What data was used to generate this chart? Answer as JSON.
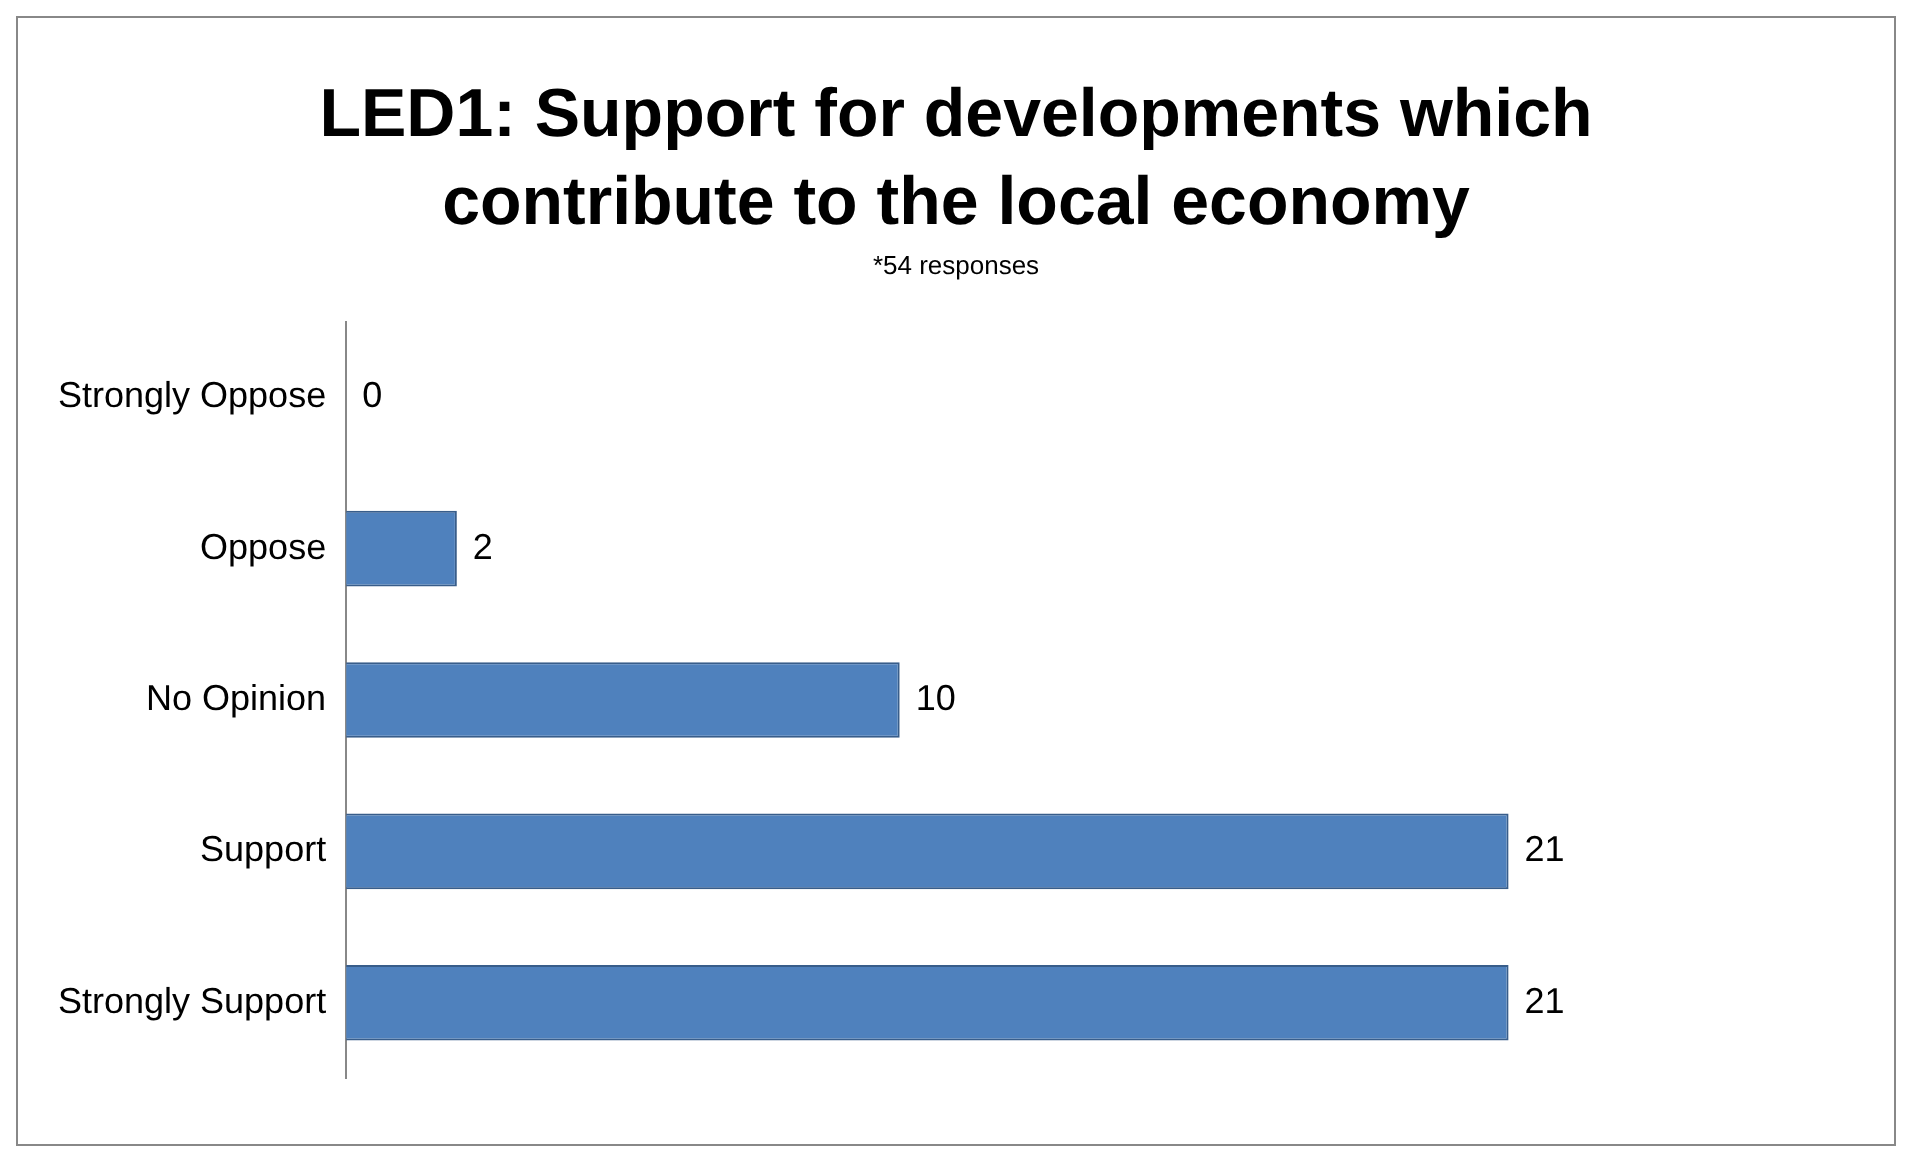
{
  "chart_data": {
    "type": "bar",
    "orientation": "horizontal",
    "title": "LED1: Support for developments which contribute to the local economy",
    "subtitle": "*54 responses",
    "categories": [
      "Strongly Oppose",
      "Oppose",
      "No Opinion",
      "Support",
      "Strongly Support"
    ],
    "values": [
      0,
      2,
      10,
      21,
      21
    ],
    "color": "#4f81bd",
    "data_labels": true,
    "legend": false
  }
}
